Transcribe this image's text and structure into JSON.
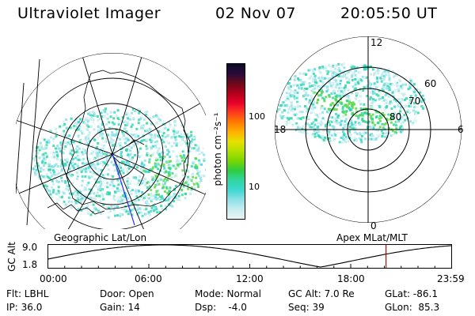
{
  "header": {
    "instrument": "Ultraviolet Imager",
    "date": "02 Nov 07",
    "time": "20:05:50 UT"
  },
  "left_map": {
    "caption": "Geographic Lat/Lon"
  },
  "right_map": {
    "caption": "Apex MLat/MLT",
    "mlt_labels": {
      "top": "12",
      "right": "6",
      "bottom": "0",
      "left": "18"
    },
    "lat_labels": [
      "60",
      "70",
      "80"
    ]
  },
  "colorbar": {
    "unit_label": "photon cm⁻²s⁻¹",
    "ticks": [
      "100",
      "10"
    ],
    "colors": [
      "#0a0a28",
      "#2a0a3a",
      "#6a0a1a",
      "#b0001a",
      "#e8002a",
      "#ff3a20",
      "#ff7a00",
      "#ffb000",
      "#e8e000",
      "#b4e000",
      "#7ad600",
      "#2ecc40",
      "#30d6a0",
      "#3cd8d0",
      "#8ce0e8",
      "#c6ecf0",
      "#e8f4f6"
    ]
  },
  "altitude_plot": {
    "ylabel": "GC Alt",
    "ytick_top": "9.0",
    "ytick_bottom": "1.8",
    "xticks": [
      "00:00",
      "06:00",
      "12:00",
      "18:00",
      "23:59"
    ],
    "current_time_hours": 20.1
  },
  "info": {
    "filter": "Flt: LBHL",
    "ip": "IP: 36.0",
    "door": "Door: Open",
    "gain": "Gain: 14",
    "mode": "Mode: Normal",
    "dsp": "Dsp:    -4.0",
    "gc_alt": "GC Alt: 7.0 Re",
    "seq": "Seq: 39",
    "glat": "GLat: -86.1",
    "glon": "GLon:  85.3"
  }
}
